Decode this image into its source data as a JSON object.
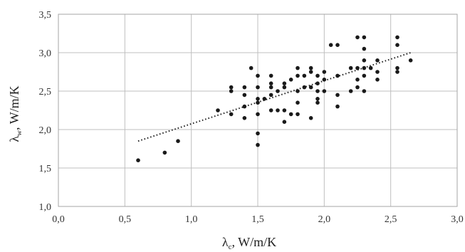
{
  "chart_data": {
    "type": "scatter",
    "title": "",
    "xlabel": {
      "symbol": "λ",
      "subscript": "c",
      "unit": ", W/m/K"
    },
    "ylabel": {
      "symbol": "λ",
      "subscript": "w",
      "unit": ", W/m/K"
    },
    "xlim": [
      0.0,
      3.0
    ],
    "ylim": [
      1.0,
      3.5
    ],
    "x_ticks": [
      "0,0",
      "0,5",
      "1,0",
      "1,5",
      "2,0",
      "2,5",
      "3,0"
    ],
    "y_ticks": [
      "1,0",
      "1,5",
      "2,0",
      "2,5",
      "3,0",
      "3,5"
    ],
    "grid": true,
    "legend": "none",
    "colors": {
      "points": "#1a1a1a",
      "trendline": "#1a1a1a",
      "grid": "#bfbfbf",
      "frame": "#a6a6a6"
    },
    "trendline": {
      "style": "dotted",
      "x": [
        0.6,
        2.65
      ],
      "y": [
        1.85,
        3.0
      ]
    },
    "series": [
      {
        "points": [
          [
            0.6,
            1.6
          ],
          [
            0.8,
            1.7
          ],
          [
            0.9,
            1.85
          ],
          [
            1.2,
            2.25
          ],
          [
            1.3,
            2.2
          ],
          [
            1.3,
            2.5
          ],
          [
            1.3,
            2.55
          ],
          [
            1.4,
            2.15
          ],
          [
            1.4,
            2.3
          ],
          [
            1.4,
            2.45
          ],
          [
            1.4,
            2.55
          ],
          [
            1.45,
            2.8
          ],
          [
            1.5,
            1.8
          ],
          [
            1.5,
            1.95
          ],
          [
            1.5,
            2.2
          ],
          [
            1.5,
            2.35
          ],
          [
            1.5,
            2.4
          ],
          [
            1.5,
            2.55
          ],
          [
            1.5,
            2.7
          ],
          [
            1.55,
            2.4
          ],
          [
            1.6,
            2.25
          ],
          [
            1.6,
            2.45
          ],
          [
            1.6,
            2.55
          ],
          [
            1.6,
            2.6
          ],
          [
            1.6,
            2.7
          ],
          [
            1.65,
            2.25
          ],
          [
            1.65,
            2.5
          ],
          [
            1.7,
            2.1
          ],
          [
            1.7,
            2.25
          ],
          [
            1.7,
            2.55
          ],
          [
            1.7,
            2.6
          ],
          [
            1.75,
            2.2
          ],
          [
            1.75,
            2.65
          ],
          [
            1.8,
            2.2
          ],
          [
            1.8,
            2.35
          ],
          [
            1.8,
            2.5
          ],
          [
            1.8,
            2.7
          ],
          [
            1.8,
            2.8
          ],
          [
            1.85,
            2.55
          ],
          [
            1.85,
            2.7
          ],
          [
            1.9,
            2.15
          ],
          [
            1.9,
            2.55
          ],
          [
            1.9,
            2.75
          ],
          [
            1.9,
            2.8
          ],
          [
            1.95,
            2.35
          ],
          [
            1.95,
            2.4
          ],
          [
            1.95,
            2.5
          ],
          [
            1.95,
            2.6
          ],
          [
            1.95,
            2.7
          ],
          [
            2.0,
            2.5
          ],
          [
            2.0,
            2.65
          ],
          [
            2.0,
            2.75
          ],
          [
            2.05,
            3.1
          ],
          [
            2.1,
            2.3
          ],
          [
            2.1,
            2.45
          ],
          [
            2.1,
            2.7
          ],
          [
            2.1,
            3.1
          ],
          [
            2.2,
            2.5
          ],
          [
            2.2,
            2.8
          ],
          [
            2.25,
            2.55
          ],
          [
            2.25,
            2.65
          ],
          [
            2.25,
            2.8
          ],
          [
            2.25,
            3.2
          ],
          [
            2.3,
            2.5
          ],
          [
            2.3,
            2.7
          ],
          [
            2.3,
            2.8
          ],
          [
            2.3,
            2.9
          ],
          [
            2.3,
            3.05
          ],
          [
            2.3,
            3.2
          ],
          [
            2.35,
            2.8
          ],
          [
            2.4,
            2.65
          ],
          [
            2.4,
            2.75
          ],
          [
            2.4,
            2.9
          ],
          [
            2.55,
            2.75
          ],
          [
            2.55,
            2.8
          ],
          [
            2.55,
            3.1
          ],
          [
            2.55,
            3.2
          ],
          [
            2.65,
            2.9
          ]
        ]
      }
    ]
  }
}
